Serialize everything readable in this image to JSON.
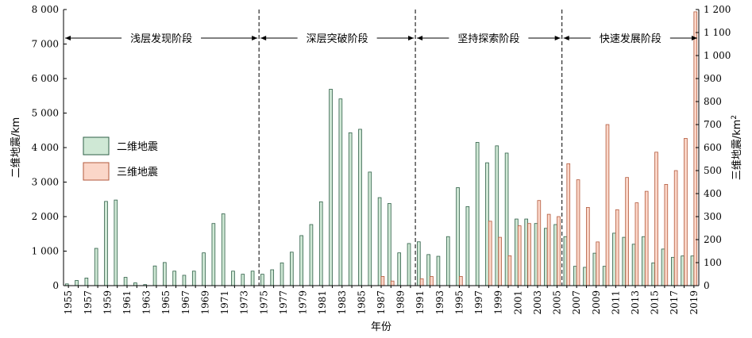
{
  "chart_data": {
    "type": "bar",
    "x": [
      1955,
      1956,
      1957,
      1958,
      1959,
      1960,
      1961,
      1962,
      1963,
      1964,
      1965,
      1966,
      1967,
      1968,
      1969,
      1970,
      1971,
      1972,
      1973,
      1974,
      1975,
      1976,
      1977,
      1978,
      1979,
      1980,
      1981,
      1982,
      1983,
      1984,
      1985,
      1986,
      1987,
      1988,
      1989,
      1990,
      1991,
      1992,
      1993,
      1994,
      1995,
      1996,
      1997,
      1998,
      1999,
      2000,
      2001,
      2002,
      2003,
      2004,
      2005,
      2006,
      2007,
      2008,
      2009,
      2010,
      2011,
      2012,
      2013,
      2014,
      2015,
      2016,
      2017,
      2018,
      2019
    ],
    "x_tick_labels": [
      "1955",
      "1957",
      "1959",
      "1961",
      "1963",
      "1965",
      "1967",
      "1969",
      "1971",
      "1973",
      "1975",
      "1977",
      "1979",
      "1981",
      "1983",
      "1985",
      "1987",
      "1989",
      "1991",
      "1993",
      "1995",
      "1997",
      "1999",
      "2001",
      "2003",
      "2005",
      "2007",
      "2009",
      "2011",
      "2013",
      "2015",
      "2017",
      "2019"
    ],
    "series": [
      {
        "name": "二维地震",
        "axis": "left",
        "color": "#cfe8d5",
        "values": [
          50,
          150,
          220,
          1080,
          2440,
          2480,
          240,
          80,
          30,
          570,
          670,
          420,
          300,
          420,
          950,
          1800,
          2080,
          420,
          330,
          420,
          330,
          460,
          660,
          970,
          1450,
          1770,
          2430,
          5690,
          5410,
          4430,
          4530,
          3290,
          2550,
          2380,
          950,
          1220,
          1270,
          900,
          850,
          1420,
          2840,
          2290,
          4150,
          3560,
          4050,
          3840,
          1930,
          1930,
          1800,
          1660,
          1770,
          1420,
          560,
          530,
          940,
          560,
          1520,
          1400,
          1200,
          1420,
          660,
          1060,
          820,
          860,
          860
        ]
      },
      {
        "name": "三维地震",
        "axis": "right",
        "color": "#fbd6c8",
        "values": [
          0,
          0,
          0,
          0,
          0,
          0,
          0,
          0,
          0,
          0,
          0,
          0,
          0,
          0,
          0,
          0,
          0,
          0,
          0,
          0,
          0,
          0,
          0,
          0,
          0,
          0,
          0,
          0,
          0,
          0,
          0,
          0,
          40,
          20,
          0,
          0,
          30,
          40,
          0,
          0,
          40,
          0,
          0,
          280,
          210,
          130,
          260,
          270,
          370,
          310,
          300,
          530,
          460,
          340,
          190,
          700,
          330,
          470,
          360,
          410,
          580,
          440,
          500,
          640,
          1190
        ]
      }
    ],
    "title": "",
    "xlabel": "年份",
    "ylabel_left": "二维地震/km",
    "ylabel_right": "三维地震/km",
    "ylabel_right_superscript": "2",
    "ylim_left": [
      0,
      8000
    ],
    "ylim_right": [
      0,
      1200
    ],
    "yticks_left": [
      "0",
      "1 000",
      "2 000",
      "3 000",
      "4 000",
      "5 000",
      "6 000",
      "7 000",
      "8 000"
    ],
    "yticks_right": [
      "0",
      "100",
      "200",
      "300",
      "400",
      "500",
      "600",
      "700",
      "800",
      "900",
      "1 000",
      "1 100",
      "1 200"
    ],
    "grid": false,
    "legend_position": "left",
    "phases": [
      {
        "label": "浅层发现阶段",
        "start_year": 1955,
        "end_year": 1974
      },
      {
        "label": "深层突破阶段",
        "start_year": 1974,
        "end_year": 1990
      },
      {
        "label": "坚持探索阶段",
        "start_year": 1990,
        "end_year": 2005
      },
      {
        "label": "快速发展阶段",
        "start_year": 2005,
        "end_year": 2019
      }
    ],
    "divider_years": [
      1974.5,
      1990.5,
      2005.5
    ]
  },
  "colors": {
    "bar_2d_fill": "#cfe8d5",
    "bar_3d_fill": "#fbd6c8",
    "bar_stroke": "#2f5f47",
    "bar_3d_stroke": "#b35a3d"
  }
}
